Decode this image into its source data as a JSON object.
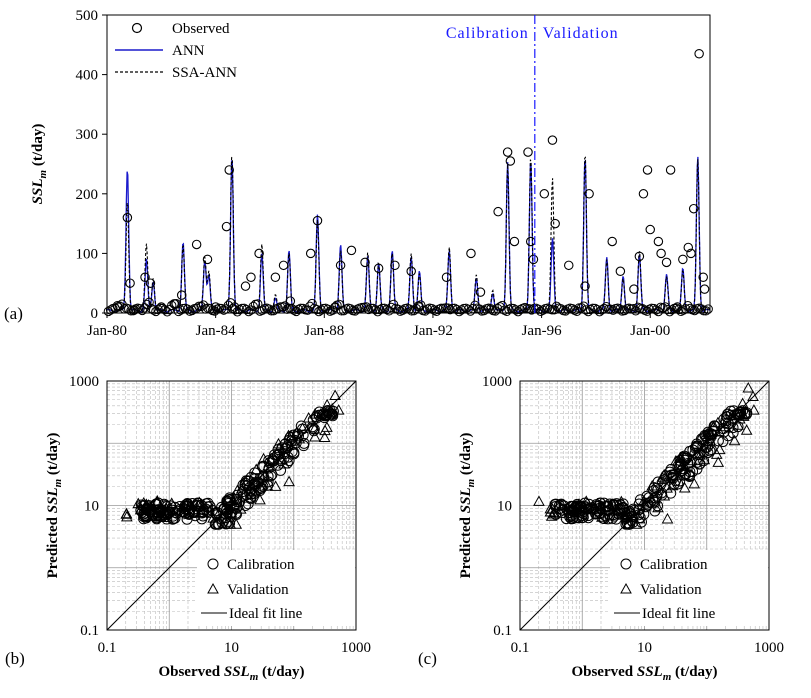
{
  "chart_data": [
    {
      "type": "line",
      "panel_label": "(a)",
      "ylabel_main": "SSL",
      "ylabel_sub": "m",
      "ylabel_unit": " (t/day)",
      "ylim": [
        0,
        500
      ],
      "yticks": [
        0,
        100,
        200,
        300,
        400,
        500
      ],
      "xlim": [
        1980.0,
        2002.2
      ],
      "xtick_labels": [
        "Jan-80",
        "Jan-84",
        "Jan-88",
        "Jan-92",
        "Jan-96",
        "Jan-00"
      ],
      "xtick_values": [
        1980,
        1984,
        1988,
        1992,
        1996,
        2000
      ],
      "divider_x": 1995.75,
      "period_labels": {
        "left": "Calibration",
        "right": "Validation"
      },
      "legend": {
        "observed": "Observed",
        "ann": "ANN",
        "ssa_ann": "SSA-ANN"
      },
      "colors": {
        "ann": "#1a1acc",
        "ssa": "#000000",
        "divider": "#1a1aff"
      },
      "series": [
        {
          "name": "Observed",
          "x": [
            1980.4,
            1980.75,
            1980.85,
            1981.0,
            1981.4,
            1981.6,
            1982.0,
            1982.5,
            1982.75,
            1983.3,
            1983.7,
            1984.0,
            1984.4,
            1984.5,
            1984.7,
            1985.1,
            1985.3,
            1985.6,
            1986.2,
            1986.5,
            1986.75,
            1987.5,
            1987.75,
            1988.4,
            1988.6,
            1989.0,
            1989.5,
            1990.0,
            1990.6,
            1991.2,
            1991.5,
            1992.5,
            1993.4,
            1993.75,
            1994.4,
            1994.75,
            1994.85,
            1995.0,
            1995.5,
            1995.6,
            1995.7,
            1996.1,
            1996.4,
            1996.5,
            1997.0,
            1997.6,
            1997.75,
            1998.6,
            1998.9,
            1999.4,
            1999.6,
            1999.75,
            1999.9,
            2000.0,
            2000.3,
            2000.4,
            2000.6,
            2000.75,
            2001.0,
            2001.2,
            2001.4,
            2001.5,
            2001.6,
            2001.8,
            2001.95,
            2002.0
          ],
          "values": [
            10,
            160,
            50,
            5,
            60,
            50,
            10,
            15,
            30,
            115,
            90,
            10,
            145,
            240,
            10,
            45,
            60,
            100,
            60,
            80,
            20,
            100,
            155,
            10,
            80,
            105,
            85,
            75,
            80,
            70,
            10,
            60,
            100,
            35,
            170,
            270,
            255,
            120,
            270,
            120,
            90,
            200,
            290,
            150,
            80,
            45,
            200,
            120,
            70,
            40,
            95,
            200,
            240,
            140,
            120,
            100,
            85,
            240,
            10,
            90,
            110,
            100,
            175,
            435,
            60,
            40
          ]
        },
        {
          "name": "ANN",
          "peaks": [
            [
              1980.75,
              240
            ],
            [
              1981.45,
              85
            ],
            [
              1981.7,
              50
            ],
            [
              1982.8,
              115
            ],
            [
              1983.6,
              85
            ],
            [
              1983.75,
              60
            ],
            [
              1984.6,
              260
            ],
            [
              1985.7,
              95
            ],
            [
              1986.2,
              20
            ],
            [
              1986.7,
              100
            ],
            [
              1987.75,
              160
            ],
            [
              1988.6,
              110
            ],
            [
              1989.6,
              90
            ],
            [
              1990.0,
              80
            ],
            [
              1990.5,
              100
            ],
            [
              1991.2,
              90
            ],
            [
              1991.5,
              65
            ],
            [
              1992.6,
              100
            ],
            [
              1993.6,
              55
            ],
            [
              1994.2,
              30
            ],
            [
              1994.75,
              250
            ],
            [
              1995.6,
              255
            ],
            [
              1996.4,
              120
            ],
            [
              1997.6,
              260
            ],
            [
              1998.4,
              90
            ],
            [
              1999.0,
              60
            ],
            [
              1999.6,
              95
            ],
            [
              2000.6,
              60
            ],
            [
              2001.2,
              70
            ],
            [
              2001.75,
              260
            ]
          ]
        },
        {
          "name": "SSA-ANN",
          "peaks": [
            [
              1980.75,
              185
            ],
            [
              1981.45,
              110
            ],
            [
              1981.7,
              55
            ],
            [
              1982.8,
              110
            ],
            [
              1983.6,
              90
            ],
            [
              1983.75,
              65
            ],
            [
              1984.6,
              265
            ],
            [
              1985.7,
              110
            ],
            [
              1986.2,
              25
            ],
            [
              1986.7,
              95
            ],
            [
              1987.75,
              150
            ],
            [
              1988.6,
              100
            ],
            [
              1989.6,
              95
            ],
            [
              1990.0,
              80
            ],
            [
              1990.5,
              95
            ],
            [
              1991.2,
              95
            ],
            [
              1991.5,
              60
            ],
            [
              1992.6,
              105
            ],
            [
              1993.6,
              60
            ],
            [
              1994.2,
              35
            ],
            [
              1994.75,
              245
            ],
            [
              1995.6,
              260
            ],
            [
              1996.4,
              220
            ],
            [
              1997.6,
              265
            ],
            [
              1998.4,
              85
            ],
            [
              1999.0,
              55
            ],
            [
              1999.6,
              100
            ],
            [
              2000.6,
              55
            ],
            [
              2001.2,
              65
            ],
            [
              2001.75,
              255
            ]
          ]
        }
      ]
    },
    {
      "type": "scatter",
      "panel_label": "(b)",
      "xlabel_main": "Observed ",
      "xlabel_var": "SSL",
      "xlabel_sub": "m",
      "xlabel_unit": " (t/day)",
      "ylabel_main": "Predicted ",
      "ylabel_var": "SSL",
      "ylabel_sub": "m",
      "ylabel_unit": " (t/day)",
      "xscale": "log",
      "yscale": "log",
      "xlim": [
        0.1,
        1000
      ],
      "ylim": [
        0.1,
        1000
      ],
      "tick_values": [
        0.1,
        10,
        1000
      ],
      "tick_labels": [
        "0.1",
        "10",
        "1000"
      ],
      "legend": {
        "calibration": "Calibration",
        "validation": "Validation",
        "ideal": "Ideal fit line"
      },
      "legend_position": "bottom-right",
      "seed": 7
    },
    {
      "type": "scatter",
      "panel_label": "(c)",
      "xlabel_main": "Observed ",
      "xlabel_var": "SSL",
      "xlabel_sub": "m",
      "xlabel_unit": " (t/day)",
      "ylabel_main": "Predicted ",
      "ylabel_var": "SSL",
      "ylabel_sub": "m",
      "ylabel_unit": " (t/day)",
      "xscale": "log",
      "yscale": "log",
      "xlim": [
        0.1,
        1000
      ],
      "ylim": [
        0.1,
        1000
      ],
      "tick_values": [
        0.1,
        10,
        1000
      ],
      "tick_labels": [
        "0.1",
        "10",
        "1000"
      ],
      "legend": {
        "calibration": "Calibration",
        "validation": "Validation",
        "ideal": "Ideal fit line"
      },
      "legend_position": "bottom-right",
      "seed": 13
    }
  ]
}
